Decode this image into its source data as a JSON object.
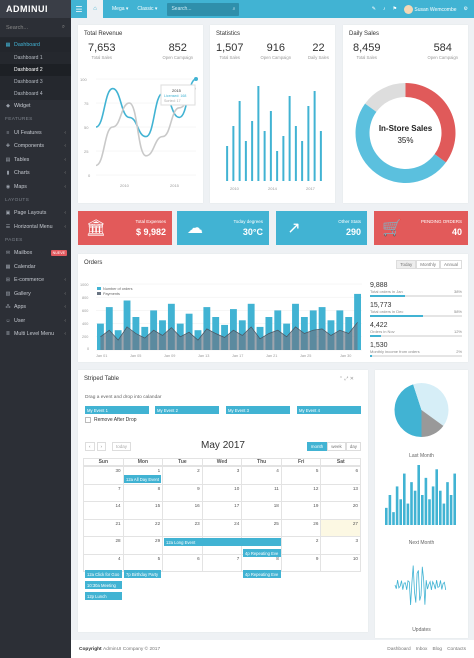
{
  "brand": "ADMINUI",
  "sidebar": {
    "search_placeholder": "Search...",
    "items": [
      {
        "label": "Dashboard",
        "icon": "grid-icon",
        "active": true
      },
      {
        "label": "Dashboard 1"
      },
      {
        "label": "Dashboard 2"
      },
      {
        "label": "Dashboard 3"
      },
      {
        "label": "Dashboard 4"
      },
      {
        "label": "Widget",
        "icon": "cube-icon"
      }
    ],
    "features_title": "FEATURES",
    "features": [
      "UI Features",
      "Components",
      "Tables",
      "Charts",
      "Maps"
    ],
    "layouts_title": "LAYOUTS",
    "layouts": [
      "Page Layouts",
      "Horizontal Menu"
    ],
    "pages_title": "PAGES",
    "pages": [
      "Mailbox",
      "Calendar",
      "E-commerce",
      "Gallery",
      "Apps",
      "User",
      "Multi Level Menu"
    ],
    "mailbox_badge": "NUEVE"
  },
  "topbar": {
    "mega": "Mega",
    "classic": "Classic",
    "search_placeholder": "Search...",
    "user_name": "Susan Wemcombe"
  },
  "total_revenue": {
    "title": "Total Revenue",
    "v1": "7,653",
    "l1": "Total Sales",
    "v2": "852",
    "l2": "Open Campaign",
    "tooltip_year": "2015",
    "tooltip_a": "Licensed: 168",
    "tooltip_b": "Sorted: 17",
    "yticks": [
      "100",
      "75",
      "50",
      "25",
      "0"
    ],
    "xticks": [
      "2010",
      "2015"
    ],
    "chart_data": {
      "type": "line",
      "x": [
        2010,
        2011,
        2012,
        2013,
        2014,
        2015,
        2016
      ],
      "series": [
        {
          "values": [
            50,
            90,
            60,
            40,
            85,
            60,
            100
          ]
        },
        {
          "values": [
            10,
            50,
            75,
            20,
            40,
            70,
            90
          ]
        }
      ],
      "ylim": [
        0,
        100
      ]
    }
  },
  "statistics": {
    "title": "Statistics",
    "v1": "1,507",
    "l1": "Total Sales",
    "v2": "916",
    "l2": "Open Campaign",
    "v3": "22",
    "l3": "Daily Sales",
    "xticks": [
      "2010",
      "2014",
      "2017"
    ],
    "chart_data": {
      "type": "bar",
      "values": [
        35,
        55,
        80,
        40,
        60,
        95,
        50,
        70,
        30,
        45,
        85,
        55,
        40,
        75,
        90,
        50
      ]
    }
  },
  "daily_sales": {
    "title": "Daily Sales",
    "v1": "8,459",
    "l1": "Total Sales",
    "v2": "584",
    "l2": "Open Campaign",
    "center_label": "In-Store Sales",
    "center_value": "35%",
    "chart_data": {
      "type": "pie",
      "values": [
        35,
        50,
        15
      ],
      "colors": [
        "#e05a5a",
        "#5bc0de",
        "#dddddd"
      ]
    }
  },
  "kpis": [
    {
      "label": "Total Expenses",
      "value": "$ 9,982",
      "color": "#e25a5a",
      "icon": "bank-icon"
    },
    {
      "label": "Today degrees",
      "value": "30°C",
      "color": "#41b3d3",
      "icon": "cloud-icon"
    },
    {
      "label": "Other Stats",
      "value": "290",
      "color": "#41b3d3",
      "icon": "trend-icon"
    },
    {
      "label": "PENDING ORDERS",
      "value": "40",
      "color": "#e25a5a",
      "icon": "cart-icon"
    }
  ],
  "orders": {
    "title": "Orders",
    "tabs": [
      "Today",
      "Monthly",
      "Annual"
    ],
    "legend": [
      "Number of orders",
      "Payments"
    ],
    "yticks": [
      "1000",
      "800",
      "600",
      "400",
      "200",
      "0"
    ],
    "xticks": [
      "Jan 01",
      "Jan 05",
      "Jan 09",
      "Jan 13",
      "Jan 17",
      "Jan 21",
      "Jan 25",
      "Jan 30"
    ],
    "chart_data": {
      "type": "bar",
      "series": [
        {
          "name": "Number of orders",
          "values": [
            400,
            650,
            300,
            750,
            500,
            350,
            600,
            450,
            700,
            400,
            550,
            300,
            650,
            500,
            380,
            620,
            450,
            700,
            350,
            500,
            600,
            400,
            700,
            500,
            600,
            650,
            450,
            600,
            500,
            850
          ]
        },
        {
          "name": "Payments",
          "values": [
            200,
            300,
            150,
            350,
            250,
            180,
            300,
            220,
            340,
            200,
            270,
            150,
            320,
            250,
            190,
            300,
            220,
            350,
            170,
            250,
            300,
            200,
            350,
            250,
            300,
            320,
            220,
            300,
            250,
            420
          ]
        }
      ]
    }
  },
  "progress": [
    {
      "value": "9,888",
      "label": "Total orders in Jan",
      "pct": "38%",
      "fill": 0.38
    },
    {
      "value": "15,773",
      "label": "Total orders in Dec",
      "pct": "58%",
      "fill": 0.58
    },
    {
      "value": "4,422",
      "label": "Orders in Nov",
      "pct": "12%",
      "fill": 0.12
    },
    {
      "value": "1,530",
      "label": "Monthly income from orders",
      "pct": "2%",
      "fill": 0.02
    }
  ],
  "striped": {
    "title": "Striped Table",
    "drag_text": "Drag a event and drop into calandar",
    "events": [
      "My Event 1",
      "My Event 2",
      "My Event 3",
      "My Event 4"
    ],
    "remove_label": "Remove After Drop",
    "today_btn": "today",
    "month_title": "May 2017",
    "views": [
      "month",
      "week",
      "day"
    ],
    "days": [
      "Sun",
      "Mon",
      "Tue",
      "Wed",
      "Thu",
      "Fri",
      "Sat"
    ],
    "dates": [
      "30",
      "1",
      "2",
      "3",
      "4",
      "5",
      "6",
      "7",
      "8",
      "9",
      "10",
      "11",
      "12",
      "13",
      "14",
      "15",
      "16",
      "17",
      "18",
      "19",
      "20",
      "21",
      "22",
      "23",
      "24",
      "25",
      "26",
      "27",
      "28",
      "29",
      "30",
      "31",
      "1",
      "2",
      "3",
      "4",
      "5",
      "6",
      "7",
      "8",
      "9",
      "10"
    ],
    "cal_events": [
      "12a All Day Event",
      "12a Long Event",
      "4p Repeating Eve",
      "12a Click for Goo",
      "7p Birthday Party",
      "10:30a Meeting",
      "12p Lunch",
      "4p Repeating Eve"
    ]
  },
  "right_panel": {
    "last_month": "Last Month",
    "next_month": "Next Month",
    "updates": "Updates",
    "pie_data": {
      "type": "pie",
      "values": [
        45,
        40,
        15
      ],
      "colors": [
        "#41b3d3",
        "#d6eef7",
        "#999999"
      ]
    },
    "bars_data": {
      "type": "bar",
      "values": [
        20,
        35,
        15,
        45,
        30,
        60,
        25,
        50,
        40,
        70,
        35,
        55,
        30,
        45,
        65,
        40,
        25,
        50,
        35,
        60
      ]
    }
  },
  "footer": {
    "copyright_bold": "Copyright",
    "copyright_rest": "AdminUI Company © 2017",
    "links": [
      "Dashboard",
      "Inbox",
      "Blog",
      "Contacts"
    ]
  }
}
